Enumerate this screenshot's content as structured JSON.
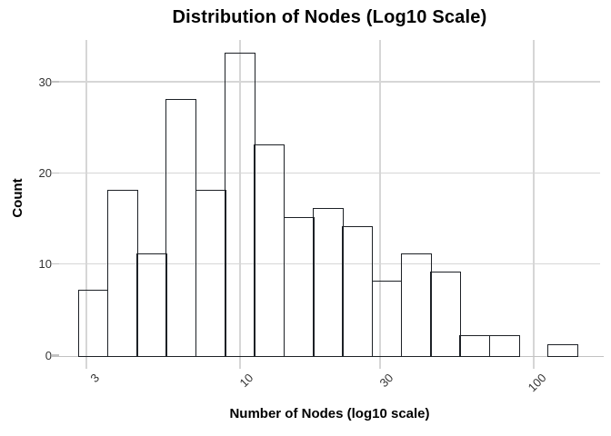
{
  "chart_data": {
    "type": "bar",
    "subtype": "histogram",
    "title": "Distribution of Nodes (Log10 Scale)",
    "xlabel": "Number of Nodes (log10 scale)",
    "ylabel": "Count",
    "x_scale": "log10",
    "bin_edges_log10": [
      0.45,
      0.55,
      0.65,
      0.75,
      0.85,
      0.95,
      1.05,
      1.15,
      1.25,
      1.35,
      1.45,
      1.55,
      1.65,
      1.75,
      1.85,
      1.95,
      2.05,
      2.15
    ],
    "bin_edges_approx_values": [
      2.8,
      3.5,
      4.5,
      5.6,
      7.1,
      8.9,
      11.2,
      14.1,
      17.8,
      22.4,
      28.2,
      35.5,
      44.7,
      56.2,
      70.8,
      89.1,
      112.2,
      141.3
    ],
    "counts": [
      7,
      18,
      11,
      28,
      18,
      33,
      23,
      15,
      16,
      14,
      8,
      11,
      9,
      2,
      2,
      0,
      1
    ],
    "total_observations": 216,
    "x_tick_values": [
      3,
      10,
      30,
      100
    ],
    "x_tick_labels": [
      "3",
      "10",
      "30",
      "100"
    ],
    "y_tick_values": [
      0,
      10,
      20,
      30
    ],
    "y_tick_labels": [
      "0",
      "10",
      "20",
      "30"
    ],
    "x_range_log10": [
      0.384,
      2.226
    ],
    "y_range": [
      0,
      34.6
    ],
    "grid": true,
    "legend": "none",
    "colors": {
      "bar_fill": "#87CEEB",
      "bar_fill_opacity": 0.8,
      "bar_edge": "#1d2126",
      "gridline": "#d6d6d6",
      "axis_line": "#c2c2c2",
      "tick_label": "#333333",
      "text": "#000000",
      "background": "#ffffff"
    }
  }
}
